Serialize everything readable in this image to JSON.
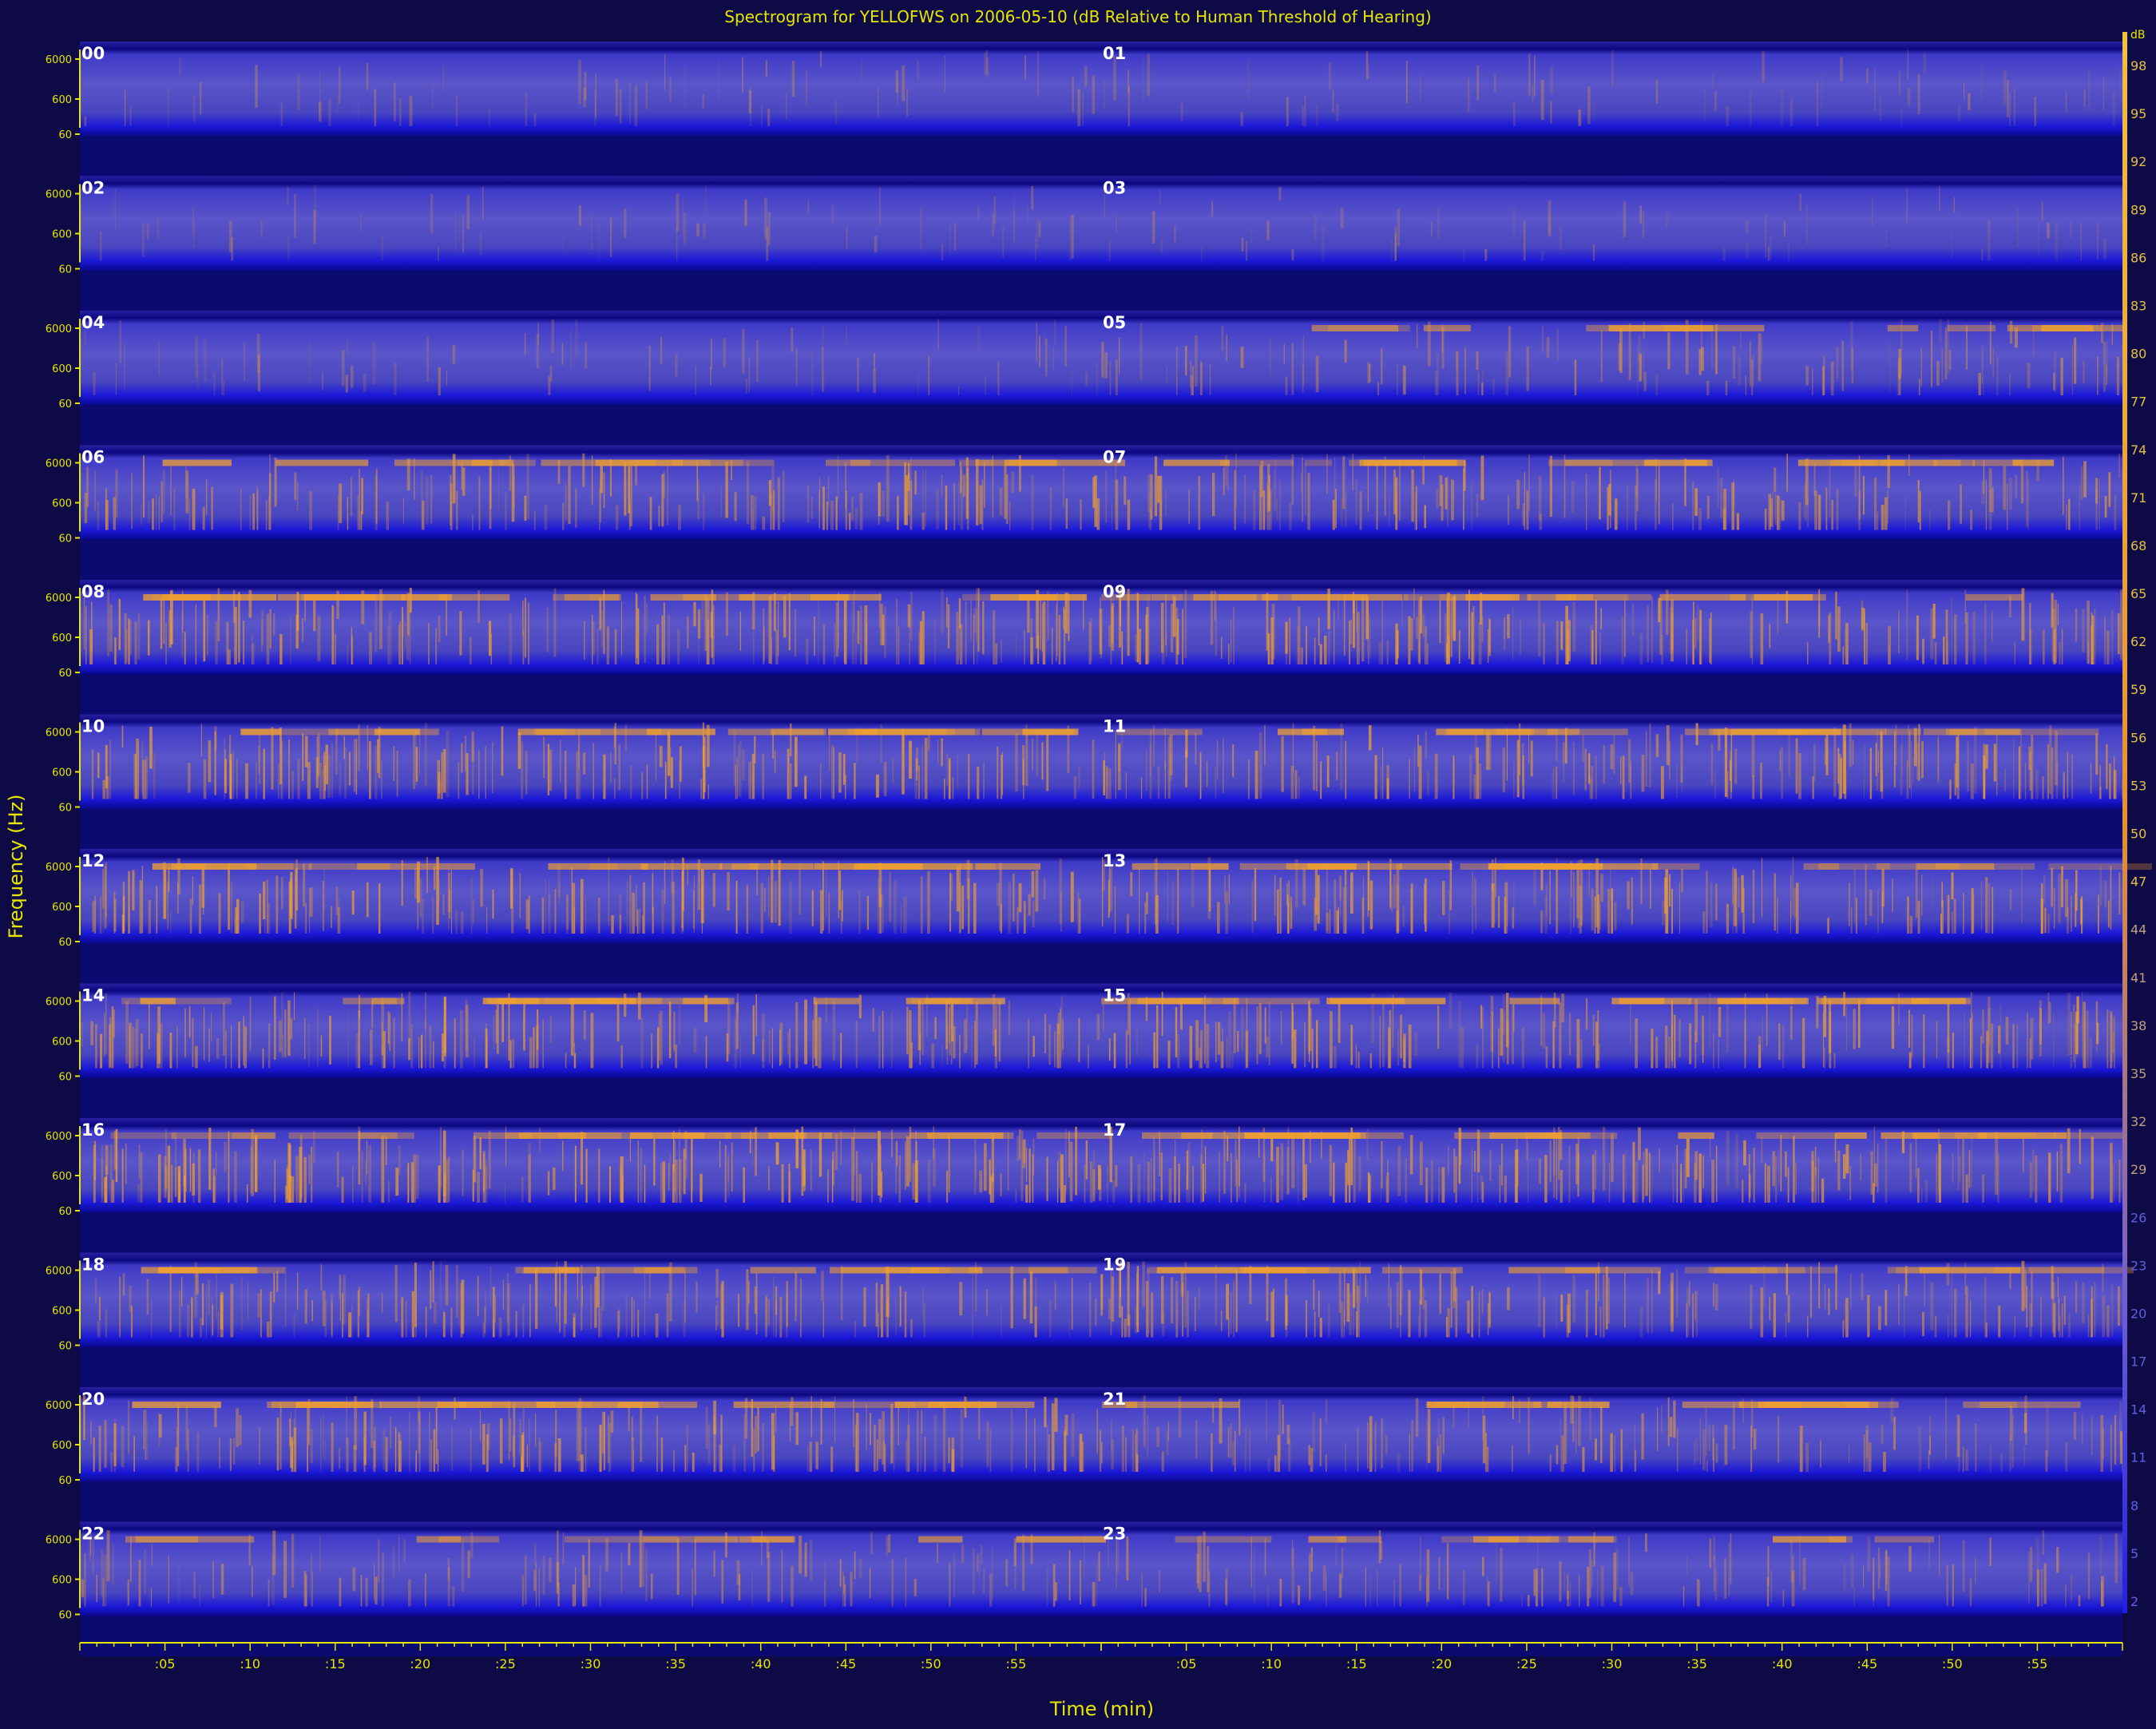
{
  "chart_data": {
    "type": "heatmap",
    "title": "Spectrogram for YELLOFWS on 2006-05-10 (dB Relative to Human Threshold of Hearing)",
    "xlabel": "Time (min)",
    "ylabel": "Frequency (Hz)",
    "hour_labels": [
      "00",
      "01",
      "02",
      "03",
      "04",
      "05",
      "06",
      "07",
      "08",
      "09",
      "10",
      "11",
      "12",
      "13",
      "14",
      "15",
      "16",
      "17",
      "18",
      "19",
      "20",
      "21",
      "22",
      "23"
    ],
    "frequency_ticks": [
      "6000",
      "600",
      "60"
    ],
    "time_ticks": [
      ":05",
      ":10",
      ":15",
      ":20",
      ":25",
      ":30",
      ":35",
      ":40",
      ":45",
      ":50",
      ":55"
    ],
    "colorbar_labels": [
      98,
      95,
      92,
      89,
      86,
      83,
      80,
      77,
      74,
      71,
      68,
      65,
      62,
      59,
      56,
      53,
      50,
      47,
      44,
      41,
      38,
      35,
      32,
      29,
      26,
      23,
      20,
      17,
      14,
      11,
      8,
      5,
      2
    ],
    "colorbar_unit": "dB",
    "colors": {
      "background": "#0d0a45",
      "quiet": "#1010c8",
      "mid": "#5050c8",
      "loud": "#f0a030",
      "axis": "#e6e600"
    },
    "activity_by_hour": [
      0.12,
      0.12,
      0.1,
      0.1,
      0.14,
      0.35,
      0.55,
      0.55,
      0.65,
      0.65,
      0.62,
      0.62,
      0.62,
      0.62,
      0.62,
      0.62,
      0.7,
      0.65,
      0.55,
      0.58,
      0.6,
      0.45,
      0.38,
      0.35
    ]
  }
}
